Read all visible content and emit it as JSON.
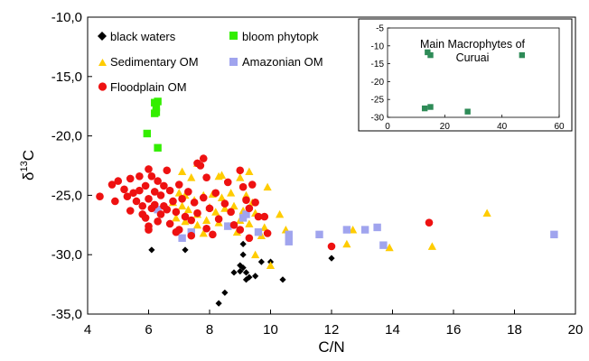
{
  "chart_data": [
    {
      "type": "scatter",
      "xlabel": "C/N",
      "ylabel_main": "δ",
      "ylabel_sup": "13",
      "ylabel_tail": "C",
      "xlim": [
        4,
        20
      ],
      "ylim": [
        -35,
        -10
      ],
      "x_ticks": [
        4,
        6,
        8,
        10,
        12,
        14,
        16,
        18,
        20
      ],
      "x_tick_labels": [
        "4",
        "6",
        "8",
        "10",
        "12",
        "14",
        "16",
        "18",
        "20"
      ],
      "y_ticks": [
        -10,
        -15,
        -20,
        -25,
        -30,
        -35
      ],
      "y_tick_labels": [
        "-10,0",
        "-15,0",
        "-20,0",
        "-25,0",
        "-30,0",
        "-35,0"
      ],
      "grid": false,
      "legend_position": "top-left",
      "series": [
        {
          "name": "black waters",
          "marker": "diamond",
          "color": "#000000",
          "points": [
            [
              6.1,
              -29.6
            ],
            [
              7.2,
              -29.6
            ],
            [
              8.5,
              -33.2
            ],
            [
              8.3,
              -34.1
            ],
            [
              8.8,
              -31.5
            ],
            [
              9.1,
              -29.1
            ],
            [
              9.1,
              -30.0
            ],
            [
              9.0,
              -31.4
            ],
            [
              9.1,
              -31.1
            ],
            [
              9.2,
              -31.5
            ],
            [
              9.3,
              -31.9
            ],
            [
              9.2,
              -32.1
            ],
            [
              9.5,
              -31.8
            ],
            [
              9.0,
              -30.9
            ],
            [
              10.0,
              -30.6
            ],
            [
              10.4,
              -32.1
            ],
            [
              12.0,
              -30.3
            ],
            [
              9.7,
              -30.6
            ]
          ]
        },
        {
          "name": "bloom phytopk",
          "marker": "square",
          "color": "#33ee00",
          "points": [
            [
              6.2,
              -17.2
            ],
            [
              6.25,
              -17.6
            ],
            [
              6.2,
              -18.1
            ],
            [
              6.25,
              -18.0
            ],
            [
              6.3,
              -17.1
            ],
            [
              5.95,
              -19.8
            ],
            [
              6.3,
              -21.0
            ]
          ]
        },
        {
          "name": "Sedimentary OM",
          "marker": "triangle",
          "color": "#ffcc00",
          "points": [
            [
              7.1,
              -23.0
            ],
            [
              7.4,
              -23.5
            ],
            [
              7.6,
              -22.3
            ],
            [
              8.3,
              -23.4
            ],
            [
              8.4,
              -23.3
            ],
            [
              9.0,
              -23.5
            ],
            [
              9.3,
              -23.0
            ],
            [
              9.9,
              -24.3
            ],
            [
              7.0,
              -24.8
            ],
            [
              7.2,
              -25.0
            ],
            [
              7.5,
              -25.4
            ],
            [
              7.8,
              -25.0
            ],
            [
              8.1,
              -24.9
            ],
            [
              8.4,
              -25.2
            ],
            [
              8.7,
              -24.8
            ],
            [
              9.2,
              -25.0
            ],
            [
              9.4,
              -25.6
            ],
            [
              6.8,
              -25.6
            ],
            [
              7.1,
              -25.9
            ],
            [
              7.3,
              -26.2
            ],
            [
              7.6,
              -26.6
            ],
            [
              8.0,
              -26.0
            ],
            [
              8.2,
              -26.4
            ],
            [
              8.5,
              -26.1
            ],
            [
              8.8,
              -25.9
            ],
            [
              9.1,
              -26.3
            ],
            [
              9.5,
              -26.5
            ],
            [
              6.9,
              -26.9
            ],
            [
              7.2,
              -27.2
            ],
            [
              7.6,
              -27.5
            ],
            [
              7.9,
              -27.1
            ],
            [
              8.3,
              -27.3
            ],
            [
              8.6,
              -27.6
            ],
            [
              9.0,
              -27.1
            ],
            [
              9.3,
              -27.4
            ],
            [
              9.8,
              -27.7
            ],
            [
              10.3,
              -26.6
            ],
            [
              9.7,
              -28.4
            ],
            [
              9.5,
              -30.0
            ],
            [
              10.0,
              -30.9
            ],
            [
              12.5,
              -29.1
            ],
            [
              12.7,
              -27.9
            ],
            [
              13.9,
              -29.4
            ],
            [
              15.3,
              -29.3
            ],
            [
              17.1,
              -26.5
            ],
            [
              10.5,
              -27.9
            ],
            [
              7.8,
              -28.2
            ],
            [
              8.9,
              -28.1
            ]
          ]
        },
        {
          "name": "Amazonian OM",
          "marker": "square",
          "color": "#a0a4ee",
          "points": [
            [
              6.3,
              -26.2
            ],
            [
              7.1,
              -28.6
            ],
            [
              7.4,
              -28.1
            ],
            [
              8.6,
              -27.6
            ],
            [
              9.2,
              -26.6
            ],
            [
              9.6,
              -28.1
            ],
            [
              10.6,
              -28.3
            ],
            [
              10.6,
              -28.9
            ],
            [
              11.6,
              -28.3
            ],
            [
              12.5,
              -27.9
            ],
            [
              13.1,
              -27.9
            ],
            [
              13.5,
              -27.7
            ],
            [
              13.7,
              -29.2
            ],
            [
              19.3,
              -28.3
            ],
            [
              9.1,
              -26.9
            ]
          ]
        },
        {
          "name": "Floodplain OM",
          "marker": "circle",
          "color": "#ee1111",
          "points": [
            [
              4.4,
              -25.1
            ],
            [
              4.8,
              -24.1
            ],
            [
              4.9,
              -25.5
            ],
            [
              5.0,
              -23.8
            ],
            [
              5.2,
              -24.5
            ],
            [
              5.3,
              -25.1
            ],
            [
              5.4,
              -23.6
            ],
            [
              5.4,
              -26.3
            ],
            [
              5.5,
              -24.8
            ],
            [
              5.6,
              -25.5
            ],
            [
              5.7,
              -23.4
            ],
            [
              5.7,
              -24.6
            ],
            [
              5.8,
              -25.9
            ],
            [
              5.8,
              -26.6
            ],
            [
              5.9,
              -24.2
            ],
            [
              6.0,
              -22.8
            ],
            [
              6.0,
              -25.3
            ],
            [
              6.0,
              -27.6
            ],
            [
              6.1,
              -23.4
            ],
            [
              6.1,
              -26.1
            ],
            [
              6.2,
              -24.7
            ],
            [
              6.2,
              -25.8
            ],
            [
              6.3,
              -23.8
            ],
            [
              6.3,
              -27.2
            ],
            [
              6.4,
              -25.0
            ],
            [
              6.4,
              -26.6
            ],
            [
              6.5,
              -24.2
            ],
            [
              6.5,
              -25.9
            ],
            [
              6.6,
              -22.9
            ],
            [
              6.6,
              -26.2
            ],
            [
              6.7,
              -24.6
            ],
            [
              6.7,
              -27.4
            ],
            [
              6.8,
              -25.5
            ],
            [
              6.9,
              -26.4
            ],
            [
              7.0,
              -24.1
            ],
            [
              7.0,
              -27.9
            ],
            [
              7.1,
              -25.3
            ],
            [
              7.2,
              -26.8
            ],
            [
              7.3,
              -24.7
            ],
            [
              7.4,
              -27.1
            ],
            [
              7.5,
              -25.6
            ],
            [
              7.6,
              -22.3
            ],
            [
              7.7,
              -22.5
            ],
            [
              7.8,
              -21.9
            ],
            [
              7.9,
              -23.5
            ],
            [
              7.6,
              -26.5
            ],
            [
              7.8,
              -25.2
            ],
            [
              7.9,
              -27.8
            ],
            [
              8.0,
              -26.1
            ],
            [
              8.1,
              -28.3
            ],
            [
              8.2,
              -24.8
            ],
            [
              8.3,
              -27.0
            ],
            [
              8.5,
              -25.7
            ],
            [
              8.6,
              -23.9
            ],
            [
              8.7,
              -26.4
            ],
            [
              8.8,
              -27.5
            ],
            [
              9.0,
              -22.9
            ],
            [
              9.1,
              -24.3
            ],
            [
              9.2,
              -25.4
            ],
            [
              9.3,
              -26.1
            ],
            [
              9.4,
              -24.1
            ],
            [
              9.5,
              -25.6
            ],
            [
              9.6,
              -26.8
            ],
            [
              9.8,
              -26.8
            ],
            [
              9.0,
              -27.9
            ],
            [
              9.3,
              -28.6
            ],
            [
              9.9,
              -28.2
            ],
            [
              6.9,
              -28.1
            ],
            [
              7.4,
              -28.4
            ],
            [
              6.0,
              -27.9
            ],
            [
              5.9,
              -26.9
            ],
            [
              12.0,
              -29.3
            ],
            [
              15.2,
              -27.3
            ]
          ]
        }
      ]
    },
    {
      "type": "scatter",
      "title_line1": "Main Macrophytes of",
      "title_line2": "Curuai",
      "xlim": [
        0,
        60
      ],
      "ylim": [
        -30,
        -5
      ],
      "x_ticks": [
        0,
        20,
        40,
        60
      ],
      "x_tick_labels": [
        "0",
        "20",
        "40",
        "60"
      ],
      "y_ticks": [
        -5,
        -10,
        -15,
        -20,
        -25,
        -30
      ],
      "y_tick_labels": [
        "-5",
        "-10",
        "-15",
        "-20",
        "-25",
        "-30"
      ],
      "grid": false,
      "series": [
        {
          "marker": "square",
          "color": "#2e8b57",
          "points": [
            [
              14.0,
              -11.8
            ],
            [
              15.0,
              -12.6
            ],
            [
              47.0,
              -12.6
            ],
            [
              13.0,
              -27.5
            ],
            [
              15.0,
              -27.1
            ],
            [
              28.0,
              -28.4
            ]
          ]
        }
      ]
    }
  ],
  "colors": {
    "axis": "#000000",
    "background": "#ffffff"
  }
}
